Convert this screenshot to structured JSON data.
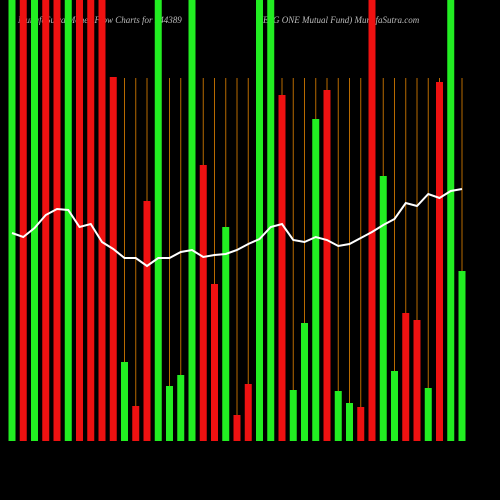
{
  "chart_data": {
    "type": "bar",
    "title": "MunafaSutra Money Flow Charts for 544389",
    "subtitle": "(ESG ONE Mutual Fund) MunafaSutra.com",
    "categories": [
      null,
      null,
      null,
      null,
      null,
      null,
      null,
      null,
      null,
      null,
      null,
      null,
      null,
      null,
      null,
      null,
      null,
      null,
      null,
      null,
      null,
      null,
      null,
      null,
      null,
      null,
      null,
      null,
      null,
      null,
      null,
      null,
      null,
      null,
      null,
      null,
      null,
      null,
      null,
      null,
      null
    ],
    "values": [
      441,
      441,
      441,
      441,
      441,
      441,
      441,
      441,
      441,
      364,
      79,
      35,
      240,
      441,
      55,
      66,
      441,
      276,
      157,
      214,
      26,
      57,
      441,
      441,
      346,
      51,
      118,
      322,
      351,
      50,
      38,
      34,
      441,
      265,
      70,
      128,
      121,
      53,
      359,
      441,
      170
    ],
    "colors": [
      "#22ee22",
      "#ee1111",
      "#22ee22",
      "#ee1111",
      "#ee1111",
      "#22ee22",
      "#ee1111",
      "#ee1111",
      "#ee1111",
      "#ee1111",
      "#22ee22",
      "#ee1111",
      "#ee1111",
      "#22ee22",
      "#22ee22",
      "#22ee22",
      "#22ee22",
      "#ee1111",
      "#ee1111",
      "#22ee22",
      "#ee1111",
      "#ee1111",
      "#22ee22",
      "#22ee22",
      "#ee1111",
      "#22ee22",
      "#22ee22",
      "#22ee22",
      "#ee1111",
      "#22ee22",
      "#22ee22",
      "#ee1111",
      "#ee1111",
      "#22ee22",
      "#22ee22",
      "#ee1111",
      "#ee1111",
      "#22ee22",
      "#ee1111",
      "#22ee22",
      "#22ee22"
    ],
    "line": {
      "values": [
        208,
        204,
        213,
        226,
        232,
        231,
        214,
        217,
        199,
        192,
        183,
        183,
        175,
        183,
        183,
        189,
        191,
        184,
        186,
        187,
        191,
        197,
        202,
        214,
        217,
        201,
        199,
        204,
        201,
        195,
        197,
        203,
        209,
        216,
        222,
        238,
        235,
        247,
        243,
        250,
        252
      ],
      "color": "#ffffff"
    },
    "ylim": [
      0,
      441
    ],
    "grid": true,
    "grid_color": "#b86a00"
  }
}
